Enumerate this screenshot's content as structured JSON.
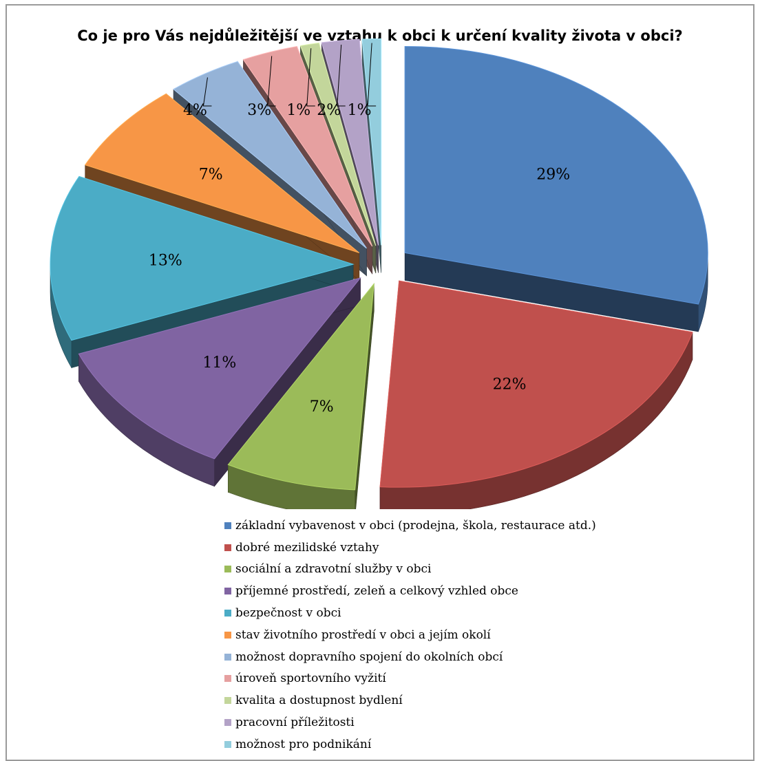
{
  "chart_data": {
    "type": "pie",
    "title": "Co je pro Vás nejdůležitější ve vztahu k obci k určení kvality života v obci?",
    "categories": [
      "základní vybavenost v obci (prodejna, škola, restaurace atd.)",
      "dobré mezilidské vztahy",
      "sociální a zdravotní služby v obci",
      "příjemné prostředí, zeleň a celkový vzhled obce",
      "bezpečnost v obci",
      "stav životního prostředí v obci a jejím okolí",
      "možnost dopravního spojení do okolních obcí",
      "úroveň sportovního vyžití",
      "kvalita a dostupnost bydlení",
      "pracovní příležitosti",
      "možnost pro podnikání"
    ],
    "values": [
      29,
      22,
      7,
      11,
      13,
      7,
      4,
      3,
      1,
      2,
      1
    ],
    "data_labels": [
      "29%",
      "22%",
      "7%",
      "11%",
      "13%",
      "7%",
      "4%",
      "3%",
      "1%",
      "2%",
      "1%"
    ],
    "colors": [
      "#4F81BD",
      "#C0504D",
      "#9BBB59",
      "#8064A2",
      "#4BACC6",
      "#F79646",
      "#95B3D7",
      "#E6A0A0",
      "#C3D69B",
      "#B3A2C7",
      "#93CDDD"
    ],
    "legend_position": "bottom",
    "exploded": true,
    "style": "3d"
  }
}
